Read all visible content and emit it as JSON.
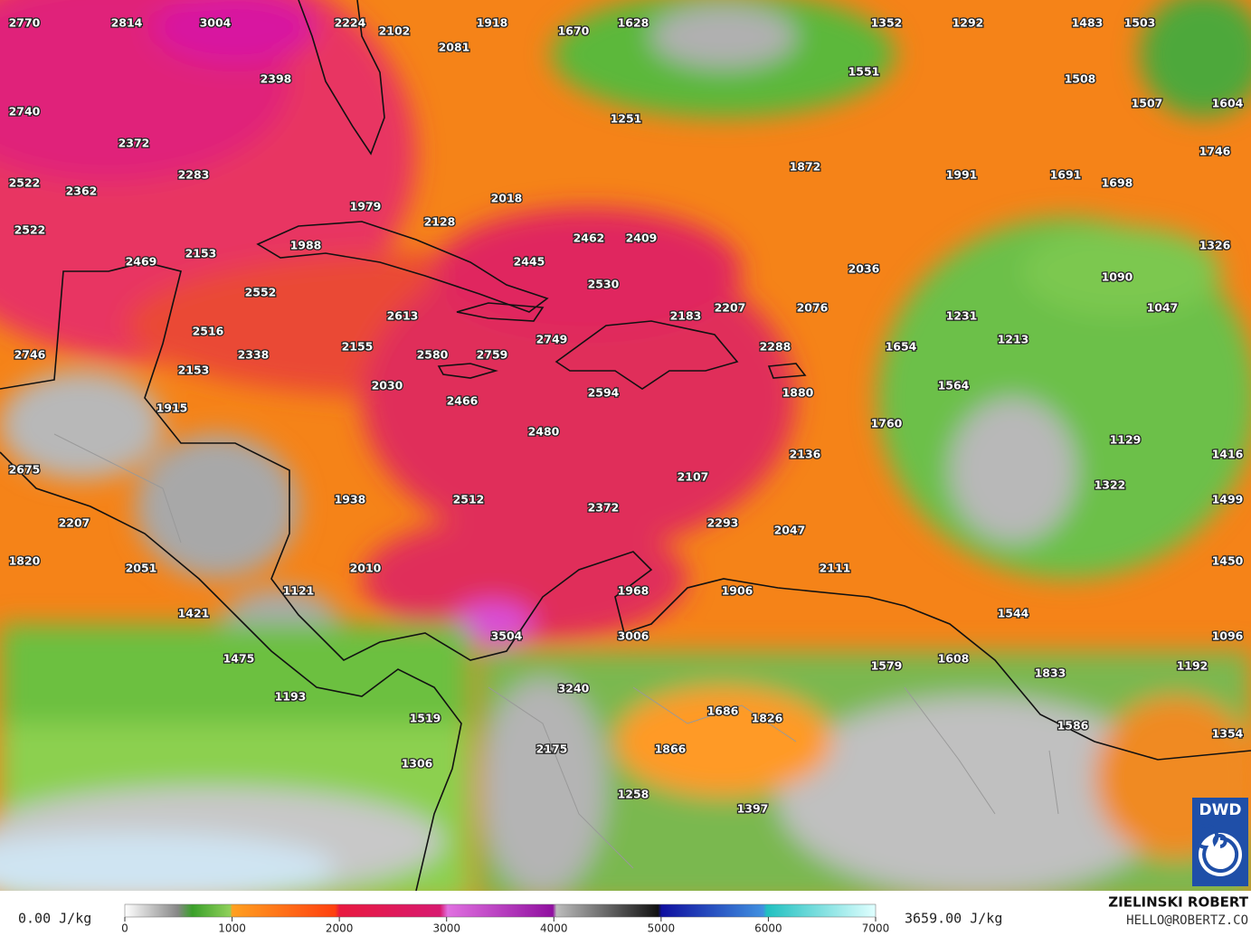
{
  "map": {
    "labels": [
      2770,
      2814,
      3004,
      2224,
      2102,
      1918,
      2081,
      1670,
      1628,
      1352,
      1292,
      1483,
      1503,
      2398,
      1551,
      1508,
      2740,
      1251,
      1507,
      1604,
      2372,
      1746,
      1872,
      1991,
      1691,
      1698,
      2522,
      2362,
      2283,
      2018,
      1979,
      2128,
      2522,
      2462,
      2409,
      1988,
      2153,
      1326,
      2469,
      2445,
      2036,
      2530,
      1090,
      2552,
      1047,
      2207,
      2076,
      2183,
      2613,
      1231,
      2516,
      2749,
      1213,
      2155,
      2288,
      1654,
      2746,
      2338,
      2580,
      2759,
      2153,
      2030,
      1564,
      2594,
      1880,
      2466,
      1915,
      1760,
      2480,
      1129,
      2136,
      1416,
      2107,
      2675,
      1322,
      1938,
      2512,
      2372,
      1499,
      2207,
      2293,
      2047,
      1820,
      1450,
      2051,
      2010,
      2111,
      1121,
      1968,
      1906,
      1421,
      1544,
      3504,
      3006,
      1096,
      1475,
      1608,
      1579,
      1192,
      1833,
      3240,
      1193,
      1686,
      1826,
      1519,
      1586,
      1354,
      2175,
      1866,
      1306,
      1258,
      1397
    ]
  },
  "legend": {
    "min_label": "0.00 J/kg",
    "max_label": "3659.00 J/kg",
    "ticks": [
      0,
      1000,
      2000,
      3000,
      4000,
      5000,
      6000,
      7000
    ]
  },
  "credit": {
    "author": "ZIELINSKI ROBERT",
    "contact": "HELLO@ROBERTZ.CO",
    "logo": "DWD"
  }
}
